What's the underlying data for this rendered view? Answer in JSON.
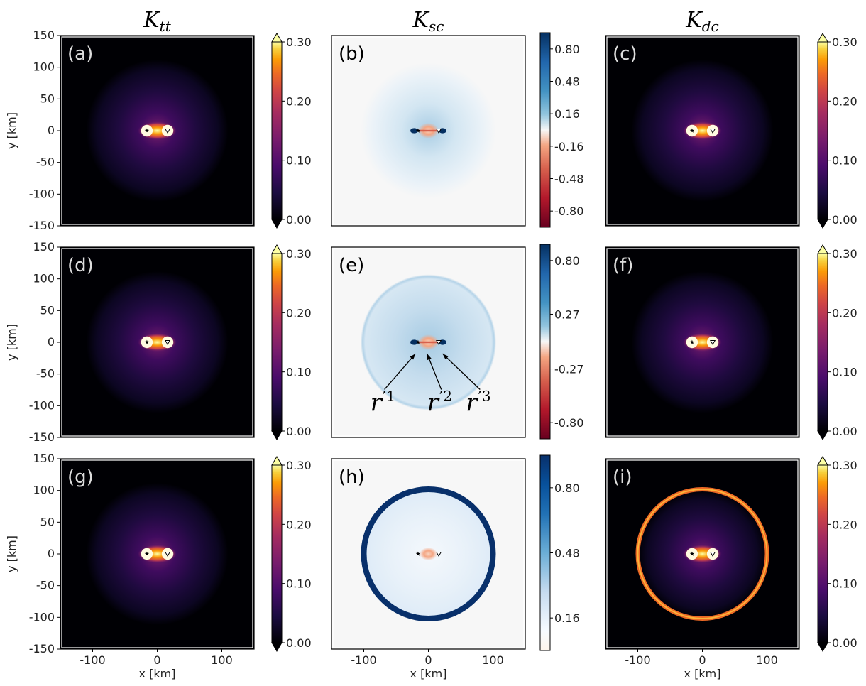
{
  "figure": {
    "column_titles": [
      {
        "base": "K",
        "sub": "tt"
      },
      {
        "base": "K",
        "sub": "sc"
      },
      {
        "base": "K",
        "sub": "dc"
      }
    ]
  },
  "chart_data": [
    {
      "id": "a",
      "label": "(a)",
      "type": "heatmap",
      "kernel": "Ktt",
      "row": 0,
      "col": 0,
      "cmap": "inferno",
      "colorbar_ticks": [
        "0.00",
        "0.10",
        "0.20",
        "0.30"
      ],
      "vmin": 0.0,
      "vmax": 0.3,
      "halo_radius_km": 110,
      "ring_km": null,
      "ylabel": "y [km]",
      "xlabel": "",
      "ylim": [
        -150,
        150
      ],
      "xlim": [
        -150,
        150
      ],
      "y_ticks": [
        "150",
        "100",
        "50",
        "0",
        "-50",
        "-100",
        "-150"
      ],
      "x_ticks": []
    },
    {
      "id": "b",
      "label": "(b)",
      "type": "heatmap",
      "kernel": "Ksc",
      "row": 0,
      "col": 1,
      "cmap": "rdbu",
      "colorbar_ticks": [
        "-0.80",
        "-0.48",
        "-0.16",
        "0.16",
        "0.48",
        "0.80"
      ],
      "vmin": -0.96,
      "vmax": 0.96,
      "halo_radius_km": 105,
      "ring_km": null,
      "ylabel": "",
      "xlabel": "",
      "ylim": [
        -150,
        150
      ],
      "xlim": [
        -150,
        150
      ],
      "y_ticks": [],
      "x_ticks": []
    },
    {
      "id": "c",
      "label": "(c)",
      "type": "heatmap",
      "kernel": "Kdc",
      "row": 0,
      "col": 2,
      "cmap": "inferno",
      "colorbar_ticks": [
        "0.00",
        "0.10",
        "0.20",
        "0.30"
      ],
      "vmin": 0.0,
      "vmax": 0.3,
      "halo_radius_km": 110,
      "ring_km": null,
      "ylabel": "",
      "xlabel": "",
      "ylim": [
        -150,
        150
      ],
      "xlim": [
        -150,
        150
      ],
      "y_ticks": [],
      "x_ticks": []
    },
    {
      "id": "d",
      "label": "(d)",
      "type": "heatmap",
      "kernel": "Ktt",
      "row": 1,
      "col": 0,
      "cmap": "inferno",
      "colorbar_ticks": [
        "0.00",
        "0.10",
        "0.20",
        "0.30"
      ],
      "vmin": 0.0,
      "vmax": 0.3,
      "halo_radius_km": 110,
      "ring_km": null,
      "ylabel": "y [km]",
      "xlabel": "",
      "ylim": [
        -150,
        150
      ],
      "xlim": [
        -150,
        150
      ],
      "y_ticks": [
        "150",
        "100",
        "50",
        "0",
        "-50",
        "-100",
        "-150"
      ],
      "x_ticks": []
    },
    {
      "id": "e",
      "label": "(e)",
      "type": "heatmap",
      "kernel": "Ksc",
      "row": 1,
      "col": 1,
      "cmap": "rdbu",
      "colorbar_ticks": [
        "-0.80",
        "-0.27",
        "0.27",
        "0.80"
      ],
      "vmin": -0.96,
      "vmax": 0.96,
      "halo_radius_km": 105,
      "ring_km": null,
      "ylabel": "",
      "xlabel": "",
      "ylim": [
        -150,
        150
      ],
      "xlim": [
        -150,
        150
      ],
      "y_ticks": [],
      "x_ticks": [],
      "annotations": [
        {
          "base": "r",
          "sup": "’1",
          "text_xy": [
            -90,
            -108
          ],
          "arrow_to": [
            -20,
            -18
          ]
        },
        {
          "base": "r",
          "sup": "’2",
          "text_xy": [
            -2,
            -108
          ],
          "arrow_to": [
            -2,
            -18
          ]
        },
        {
          "base": "r",
          "sup": "’3",
          "text_xy": [
            58,
            -108
          ],
          "arrow_to": [
            22,
            -18
          ]
        }
      ]
    },
    {
      "id": "f",
      "label": "(f)",
      "type": "heatmap",
      "kernel": "Kdc",
      "row": 1,
      "col": 2,
      "cmap": "inferno",
      "colorbar_ticks": [
        "0.00",
        "0.10",
        "0.20",
        "0.30"
      ],
      "vmin": 0.0,
      "vmax": 0.3,
      "halo_radius_km": 110,
      "ring_km": null,
      "ylabel": "",
      "xlabel": "",
      "ylim": [
        -150,
        150
      ],
      "xlim": [
        -150,
        150
      ],
      "y_ticks": [],
      "x_ticks": []
    },
    {
      "id": "g",
      "label": "(g)",
      "type": "heatmap",
      "kernel": "Ktt",
      "row": 2,
      "col": 0,
      "cmap": "inferno",
      "colorbar_ticks": [
        "0.00",
        "0.10",
        "0.20",
        "0.30"
      ],
      "vmin": 0.0,
      "vmax": 0.3,
      "halo_radius_km": 110,
      "ring_km": null,
      "ylabel": "y [km]",
      "xlabel": "x [km]",
      "ylim": [
        -150,
        150
      ],
      "xlim": [
        -150,
        150
      ],
      "y_ticks": [
        "150",
        "100",
        "50",
        "0",
        "-50",
        "-100",
        "-150"
      ],
      "x_ticks": [
        "-100",
        "0",
        "100"
      ]
    },
    {
      "id": "h",
      "label": "(h)",
      "type": "heatmap",
      "kernel": "Ksc",
      "row": 2,
      "col": 1,
      "cmap": "blues",
      "colorbar_ticks": [
        "0.16",
        "0.48",
        "0.80"
      ],
      "vmin": 0.0,
      "vmax": 0.96,
      "halo_radius_km": 100,
      "ring_km": 100,
      "ylabel": "",
      "xlabel": "x [km]",
      "ylim": [
        -150,
        150
      ],
      "xlim": [
        -150,
        150
      ],
      "y_ticks": [],
      "x_ticks": [
        "-100",
        "0",
        "100"
      ]
    },
    {
      "id": "i",
      "label": "(i)",
      "type": "heatmap",
      "kernel": "Kdc",
      "row": 2,
      "col": 2,
      "cmap": "inferno",
      "colorbar_ticks": [
        "0.00",
        "0.10",
        "0.20",
        "0.30"
      ],
      "vmin": 0.0,
      "vmax": 0.3,
      "halo_radius_km": 100,
      "ring_km": 100,
      "ylabel": "",
      "xlabel": "x [km]",
      "ylim": [
        -150,
        150
      ],
      "xlim": [
        -150,
        150
      ],
      "y_ticks": [],
      "x_ticks": [
        "-100",
        "0",
        "100"
      ]
    }
  ],
  "markers": {
    "source_x_km": -16,
    "receiver_x_km": 16
  }
}
